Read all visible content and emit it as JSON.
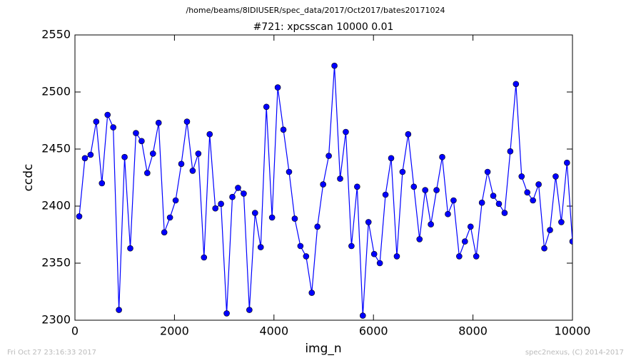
{
  "chart_data": {
    "type": "line",
    "suptitle": "/home/beams/8IDIUSER/spec_data/2017/Oct2017/bates20171024",
    "title": "#721: xpcsscan 10000 0.01",
    "xlabel": "img_n",
    "ylabel": "ccdc",
    "footer_left": "Fri Oct 27 23:16:33 2017",
    "footer_right": "spec2nexus, (C) 2014-2017",
    "xlim": [
      0,
      10000
    ],
    "xticks": [
      0,
      2000,
      4000,
      6000,
      8000,
      10000
    ],
    "ylim": [
      2300,
      2550
    ],
    "yticks": [
      2300,
      2350,
      2400,
      2450,
      2500,
      2550
    ],
    "grid": false,
    "x": [
      86,
      200,
      314,
      428,
      542,
      656,
      770,
      884,
      998,
      1112,
      1226,
      1340,
      1454,
      1568,
      1682,
      1796,
      1910,
      2024,
      2138,
      2252,
      2366,
      2480,
      2594,
      2708,
      2822,
      2936,
      3050,
      3164,
      3278,
      3392,
      3506,
      3620,
      3734,
      3848,
      3962,
      4076,
      4190,
      4304,
      4418,
      4532,
      4646,
      4760,
      4874,
      4988,
      5102,
      5216,
      5330,
      5444,
      5558,
      5672,
      5786,
      5900,
      6014,
      6128,
      6242,
      6356,
      6470,
      6584,
      6698,
      6812,
      6926,
      7040,
      7154,
      7268,
      7382,
      7496,
      7610,
      7724,
      7838,
      7952,
      8066,
      8180,
      8294,
      8408,
      8522,
      8636,
      8750,
      8864,
      8978,
      9092,
      9206,
      9320,
      9434,
      9548,
      9662,
      9776,
      9890,
      10000
    ],
    "series": [
      {
        "name": "ccdc",
        "color": "#0000ff",
        "values": [
          2391,
          2442,
          2445,
          2474,
          2420,
          2480,
          2469,
          2309,
          2443,
          2363,
          2464,
          2457,
          2429,
          2446,
          2473,
          2377,
          2390,
          2405,
          2437,
          2474,
          2431,
          2446,
          2355,
          2463,
          2398,
          2402,
          2306,
          2408,
          2416,
          2411,
          2309,
          2394,
          2364,
          2487,
          2390,
          2504,
          2467,
          2430,
          2389,
          2365,
          2356,
          2324,
          2382,
          2419,
          2444,
          2523,
          2424,
          2465,
          2365,
          2417,
          2304,
          2386,
          2358,
          2350,
          2410,
          2442,
          2356,
          2430,
          2463,
          2417,
          2371,
          2414,
          2384,
          2414,
          2443,
          2393,
          2405,
          2356,
          2369,
          2382,
          2356,
          2403,
          2430,
          2409,
          2402,
          2394,
          2448,
          2507,
          2426,
          2412,
          2405,
          2419,
          2363,
          2379,
          2426,
          2386,
          2438,
          2369
        ]
      }
    ]
  }
}
